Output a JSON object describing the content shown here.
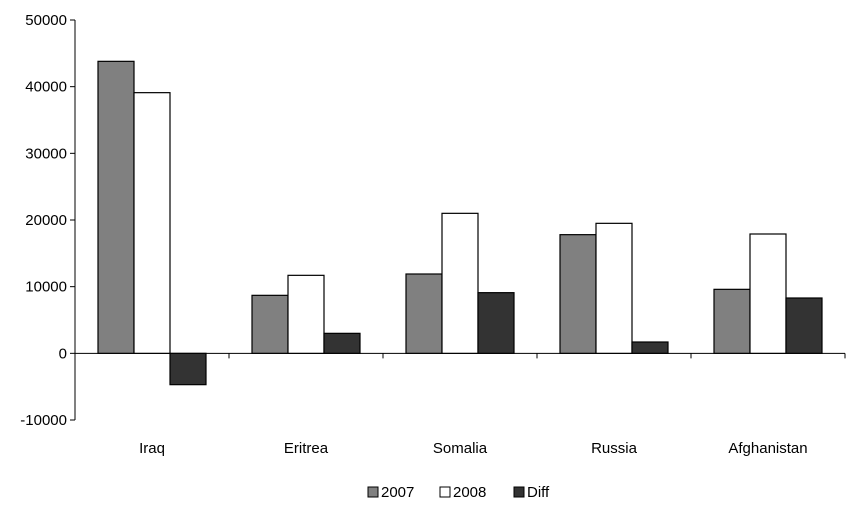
{
  "chart_data": {
    "type": "bar",
    "categories": [
      "Iraq",
      "Eritrea",
      "Somalia",
      "Russia",
      "Afghanistan"
    ],
    "series": [
      {
        "name": "2007",
        "values": [
          43800,
          8700,
          11900,
          17800,
          9600
        ],
        "color": "#808080"
      },
      {
        "name": "2008",
        "values": [
          39100,
          11700,
          21000,
          19500,
          17900
        ],
        "color": "#ffffff"
      },
      {
        "name": "Diff",
        "values": [
          -4700,
          3000,
          9100,
          1700,
          8300
        ],
        "color": "#333333"
      }
    ],
    "ylim": [
      -10000,
      50000
    ],
    "yticks": [
      "-10000",
      "0",
      "10000",
      "20000",
      "30000",
      "40000",
      "50000"
    ],
    "title": "",
    "xlabel": "",
    "ylabel": "",
    "grid": false,
    "legend_position": "bottom"
  }
}
